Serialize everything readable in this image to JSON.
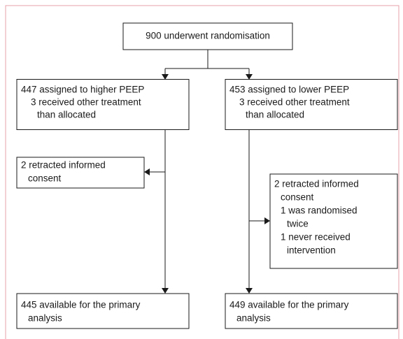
{
  "nodes": [
    {
      "lines": [
        "900 underwent randomisation"
      ]
    },
    {
      "lines": [
        "447 assigned to higher PEEP",
        "3 received other treatment",
        "than allocated"
      ]
    },
    {
      "lines": [
        "453 assigned to lower PEEP",
        "3 received other treatment",
        "than allocated"
      ]
    },
    {
      "lines": [
        "2 retracted informed",
        "consent"
      ]
    },
    {
      "lines": [
        "2 retracted informed",
        "consent",
        "1 was randomised",
        "twice",
        "1 never received",
        "intervention"
      ]
    },
    {
      "lines": [
        "445 available for the primary",
        "analysis"
      ]
    },
    {
      "lines": [
        "449 available for the primary",
        "analysis"
      ]
    }
  ]
}
